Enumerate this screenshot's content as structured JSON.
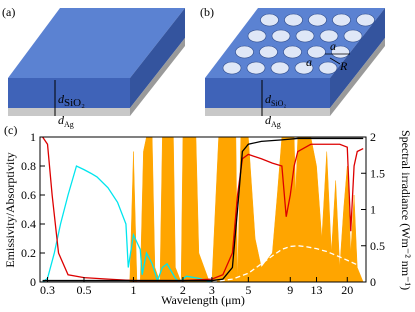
{
  "diagram_a": {
    "label": "(a)",
    "oxide_thickness": {
      "symbol": "d",
      "subscript": "SiO₂"
    },
    "metal_thickness": {
      "symbol": "d",
      "subscript": "Ag"
    }
  },
  "diagram_b": {
    "label": "(b)",
    "oxide_thickness": {
      "symbol": "d",
      "subscript": "SiO₂"
    },
    "metal_thickness": {
      "symbol": "d",
      "subscript": "Ag"
    },
    "period": "a",
    "radius": "R"
  },
  "chart_data": {
    "type": "line",
    "label": "(c)",
    "xlabel": "Wavelength (μm)",
    "ylabel": "Emissivity/Absorptivity",
    "y2label": "Spectral irradiance (Wm⁻² nm⁻¹)",
    "xscale": "log",
    "xlim": [
      0.27,
      26
    ],
    "xticks": [
      0.3,
      0.5,
      1,
      2,
      3,
      5,
      9,
      13,
      20
    ],
    "ylim": [
      0,
      1
    ],
    "yticks": [
      0,
      0.2,
      0.4,
      0.6,
      0.8,
      1
    ],
    "y2lim": [
      0,
      2
    ],
    "y2ticks": [
      0,
      0.5,
      1,
      1.5,
      2
    ],
    "series": [
      {
        "color": "#ffa500",
        "area": true,
        "x": [
          0.9,
          0.95,
          1.0,
          1.05,
          1.1,
          1.15,
          1.2,
          1.3,
          1.35,
          1.45,
          1.5,
          1.75,
          1.8,
          1.95,
          2.0,
          2.4,
          2.5,
          2.9,
          3.0,
          3.3,
          4.2,
          4.3,
          4.5,
          5.0,
          5.5,
          6,
          7,
          7.5,
          8,
          9.5,
          9.7,
          10,
          12,
          13,
          14,
          15,
          16,
          17,
          18,
          19,
          20,
          21,
          22,
          23,
          25
        ],
        "values": [
          0,
          0,
          0.9,
          0,
          0,
          0.9,
          1,
          1,
          0.1,
          0,
          1,
          1,
          0.1,
          0,
          1,
          1,
          0.2,
          0,
          0,
          1,
          1,
          0,
          1,
          1,
          0.3,
          0.1,
          0.2,
          0.6,
          1,
          1,
          0.6,
          1,
          1,
          0.8,
          0.3,
          0.9,
          0.2,
          0.7,
          0.1,
          0.5,
          0.8,
          0.2,
          0.6,
          0.1,
          0
        ]
      },
      {
        "color": "#00e5ee",
        "axis": "y2",
        "x": [
          0.28,
          0.3,
          0.33,
          0.36,
          0.4,
          0.45,
          0.5,
          0.55,
          0.6,
          0.7,
          0.8,
          0.9,
          0.93,
          1,
          1.1,
          1.13,
          1.2,
          1.3,
          1.4,
          1.5,
          1.6,
          1.8,
          1.9,
          2.1,
          2.5,
          3
        ],
        "values": [
          0,
          0.05,
          0.4,
          0.8,
          1.2,
          1.6,
          1.55,
          1.5,
          1.45,
          1.3,
          1.1,
          0.8,
          0.2,
          0.65,
          0.45,
          0.1,
          0.4,
          0.25,
          0.02,
          0.2,
          0.25,
          0.05,
          0,
          0.08,
          0.05,
          0
        ]
      },
      {
        "color": "#ffffff",
        "axis": "y2",
        "dash": true,
        "x": [
          3,
          4,
          5,
          6,
          7,
          8,
          9,
          10,
          11,
          13,
          15,
          17,
          20,
          25
        ],
        "values": [
          0,
          0.04,
          0.12,
          0.25,
          0.36,
          0.45,
          0.49,
          0.5,
          0.49,
          0.46,
          0.42,
          0.37,
          0.3,
          0.2
        ]
      },
      {
        "color": "#dd0000",
        "x": [
          0.28,
          0.3,
          0.32,
          0.35,
          0.4,
          0.5,
          0.7,
          1,
          2,
          3,
          3.5,
          4,
          4.3,
          4.6,
          5,
          6,
          7,
          8,
          8.5,
          9,
          9.5,
          10,
          12,
          15,
          18,
          20,
          21,
          22,
          23,
          25
        ],
        "values": [
          1,
          0.95,
          0.6,
          0.2,
          0.05,
          0.03,
          0.02,
          0.01,
          0.01,
          0.02,
          0.05,
          0.2,
          0.6,
          0.85,
          0.88,
          0.85,
          0.82,
          0.8,
          0.45,
          0.6,
          0.8,
          0.9,
          0.95,
          0.95,
          0.95,
          0.93,
          0.35,
          0.8,
          0.9,
          0.92
        ]
      },
      {
        "color": "#000000",
        "x": [
          0.28,
          0.5,
          1,
          2,
          3,
          3.5,
          4,
          4.3,
          4.6,
          5,
          6,
          8,
          10,
          13,
          20,
          25
        ],
        "values": [
          0.01,
          0.01,
          0.01,
          0.01,
          0.01,
          0.02,
          0.1,
          0.5,
          0.9,
          0.95,
          0.97,
          0.98,
          0.99,
          0.99,
          0.99,
          0.99
        ]
      }
    ]
  }
}
